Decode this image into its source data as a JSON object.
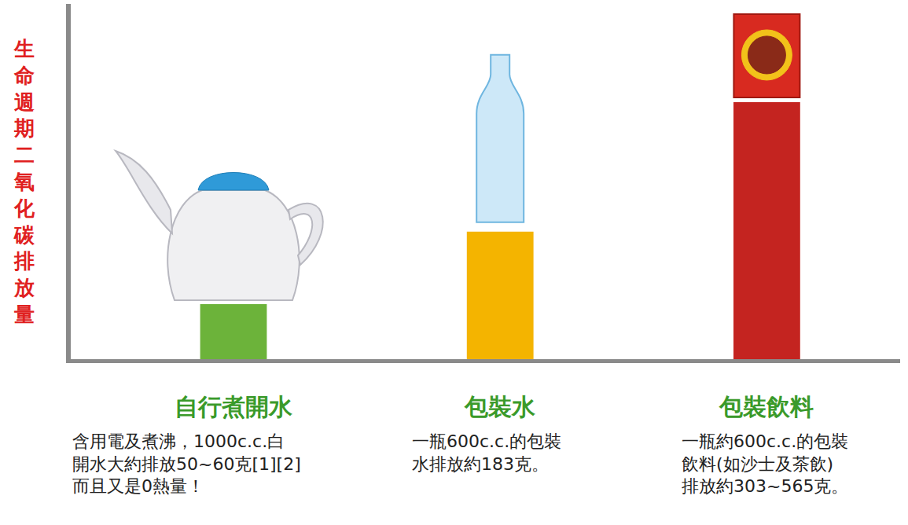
{
  "chart_data": {
    "type": "bar",
    "ylabel": "生命週期二氧化碳排放量",
    "categories": [
      "自行煮開水",
      "包裝水",
      "包裝飲料"
    ],
    "values": [
      79,
      183,
      369
    ],
    "colors": [
      "#6cb33a",
      "#f4b400",
      "#c42420"
    ],
    "descriptions": [
      [
        "含用電及煮沸，1000c.c.白",
        "開水大約排放50~60克[1][2]",
        "而且又是0熱量！"
      ],
      [
        "一瓶600c.c.的包裝",
        "水排放約183克。"
      ],
      [
        "一瓶約600c.c.的包裝",
        "飲料(如沙士及茶飲)",
        "排放約303~565克。"
      ]
    ],
    "ylim": [
      0,
      510
    ],
    "tick_labels": "x",
    "grid": false
  }
}
